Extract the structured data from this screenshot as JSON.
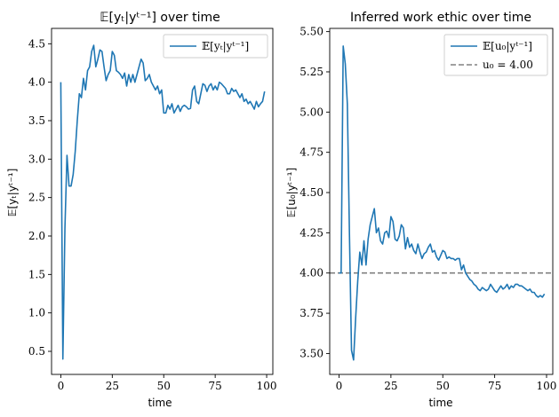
{
  "chart_data": [
    {
      "type": "line",
      "title": "𝔼[yₜ|yᵗ⁻¹] over time",
      "xlabel": "time",
      "ylabel": "𝔼[yₜ|yᵗ⁻¹]",
      "xlim": [
        -4.5,
        103
      ],
      "ylim": [
        0.2,
        4.7
      ],
      "xticks": [
        0,
        25,
        50,
        75,
        100
      ],
      "yticks": [
        0.5,
        1.0,
        1.5,
        2.0,
        2.5,
        3.0,
        3.5,
        4.0,
        4.5
      ],
      "ytick_labels": [
        "0.5",
        "1.0",
        "1.5",
        "2.0",
        "2.5",
        "3.0",
        "3.5",
        "4.0",
        "4.5"
      ],
      "legend_position": "top-right",
      "series": [
        {
          "name": "𝔼[yₜ|yᵗ⁻¹]",
          "color": "#1f77b4",
          "x": [
            0,
            1,
            2,
            3,
            4,
            5,
            6,
            7,
            8,
            9,
            10,
            11,
            12,
            13,
            14,
            15,
            16,
            17,
            18,
            19,
            20,
            21,
            22,
            23,
            24,
            25,
            26,
            27,
            28,
            29,
            30,
            31,
            32,
            33,
            34,
            35,
            36,
            37,
            38,
            39,
            40,
            41,
            42,
            43,
            44,
            45,
            46,
            47,
            48,
            49,
            50,
            51,
            52,
            53,
            54,
            55,
            56,
            57,
            58,
            59,
            60,
            61,
            62,
            63,
            64,
            65,
            66,
            67,
            68,
            69,
            70,
            71,
            72,
            73,
            74,
            75,
            76,
            77,
            78,
            79,
            80,
            81,
            82,
            83,
            84,
            85,
            86,
            87,
            88,
            89,
            90,
            91,
            92,
            93,
            94,
            95,
            96,
            97,
            98,
            99
          ],
          "values": [
            4.0,
            0.4,
            2.1,
            3.05,
            2.65,
            2.65,
            2.8,
            3.1,
            3.5,
            3.85,
            3.8,
            4.05,
            3.9,
            4.15,
            4.2,
            4.4,
            4.48,
            4.2,
            4.3,
            4.42,
            4.4,
            4.2,
            4.02,
            4.1,
            4.15,
            4.4,
            4.35,
            4.15,
            4.13,
            4.1,
            4.05,
            4.12,
            3.95,
            4.1,
            4.0,
            4.1,
            4.0,
            4.1,
            4.2,
            4.3,
            4.25,
            4.02,
            4.05,
            4.1,
            4.0,
            3.95,
            3.9,
            3.95,
            3.85,
            3.9,
            3.6,
            3.6,
            3.7,
            3.65,
            3.72,
            3.6,
            3.65,
            3.7,
            3.62,
            3.68,
            3.7,
            3.68,
            3.65,
            3.66,
            3.9,
            3.95,
            3.75,
            3.72,
            3.85,
            3.98,
            3.96,
            3.88,
            3.95,
            3.98,
            3.9,
            3.95,
            3.9,
            4.0,
            3.98,
            3.95,
            3.92,
            3.85,
            3.85,
            3.92,
            3.88,
            3.9,
            3.85,
            3.8,
            3.85,
            3.75,
            3.78,
            3.72,
            3.75,
            3.7,
            3.65,
            3.75,
            3.68,
            3.72,
            3.75,
            3.88
          ]
        }
      ]
    },
    {
      "type": "line",
      "title": "Inferred work ethic over time",
      "xlabel": "time",
      "ylabel": "𝔼[u₀|yᵗ⁻¹]",
      "xlim": [
        -4.5,
        103
      ],
      "ylim": [
        3.37,
        5.52
      ],
      "xticks": [
        0,
        25,
        50,
        75,
        100
      ],
      "yticks": [
        3.5,
        3.75,
        4.0,
        4.25,
        4.5,
        4.75,
        5.0,
        5.25,
        5.5
      ],
      "ytick_labels": [
        "3.50",
        "3.75",
        "4.00",
        "4.25",
        "4.50",
        "4.75",
        "5.00",
        "5.25",
        "5.50"
      ],
      "legend_position": "top-right",
      "series": [
        {
          "name": "𝔼[u₀|yᵗ⁻¹]",
          "color": "#1f77b4",
          "x": [
            0,
            1,
            2,
            3,
            4,
            5,
            6,
            7,
            8,
            9,
            10,
            11,
            12,
            13,
            14,
            15,
            16,
            17,
            18,
            19,
            20,
            21,
            22,
            23,
            24,
            25,
            26,
            27,
            28,
            29,
            30,
            31,
            32,
            33,
            34,
            35,
            36,
            37,
            38,
            39,
            40,
            41,
            42,
            43,
            44,
            45,
            46,
            47,
            48,
            49,
            50,
            51,
            52,
            53,
            54,
            55,
            56,
            57,
            58,
            59,
            60,
            61,
            62,
            63,
            64,
            65,
            66,
            67,
            68,
            69,
            70,
            71,
            72,
            73,
            74,
            75,
            76,
            77,
            78,
            79,
            80,
            81,
            82,
            83,
            84,
            85,
            86,
            87,
            88,
            89,
            90,
            91,
            92,
            93,
            94,
            95,
            96,
            97,
            98,
            99
          ],
          "values": [
            4.0,
            4.0,
            5.41,
            5.3,
            5.05,
            4.25,
            3.52,
            3.46,
            3.72,
            3.95,
            4.13,
            4.05,
            4.2,
            4.05,
            4.21,
            4.3,
            4.35,
            4.4,
            4.25,
            4.28,
            4.2,
            4.18,
            4.25,
            4.26,
            4.22,
            4.35,
            4.32,
            4.21,
            4.2,
            4.23,
            4.3,
            4.28,
            4.15,
            4.22,
            4.16,
            4.18,
            4.14,
            4.12,
            4.18,
            4.13,
            4.09,
            4.12,
            4.13,
            4.16,
            4.18,
            4.13,
            4.14,
            4.1,
            4.08,
            4.11,
            4.14,
            4.13,
            4.09,
            4.1,
            4.09,
            4.09,
            4.08,
            4.09,
            4.09,
            4.02,
            4.05,
            4.0,
            3.98,
            3.96,
            3.95,
            3.93,
            3.92,
            3.9,
            3.89,
            3.91,
            3.9,
            3.89,
            3.9,
            3.93,
            3.91,
            3.89,
            3.88,
            3.9,
            3.92,
            3.9,
            3.91,
            3.93,
            3.9,
            3.92,
            3.91,
            3.93,
            3.93,
            3.92,
            3.92,
            3.91,
            3.9,
            3.89,
            3.9,
            3.88,
            3.88,
            3.86,
            3.85,
            3.86,
            3.85,
            3.87
          ]
        },
        {
          "name": "u₀ = 4.00",
          "kind": "hline",
          "color": "#808080",
          "value": 4.0
        }
      ]
    }
  ]
}
